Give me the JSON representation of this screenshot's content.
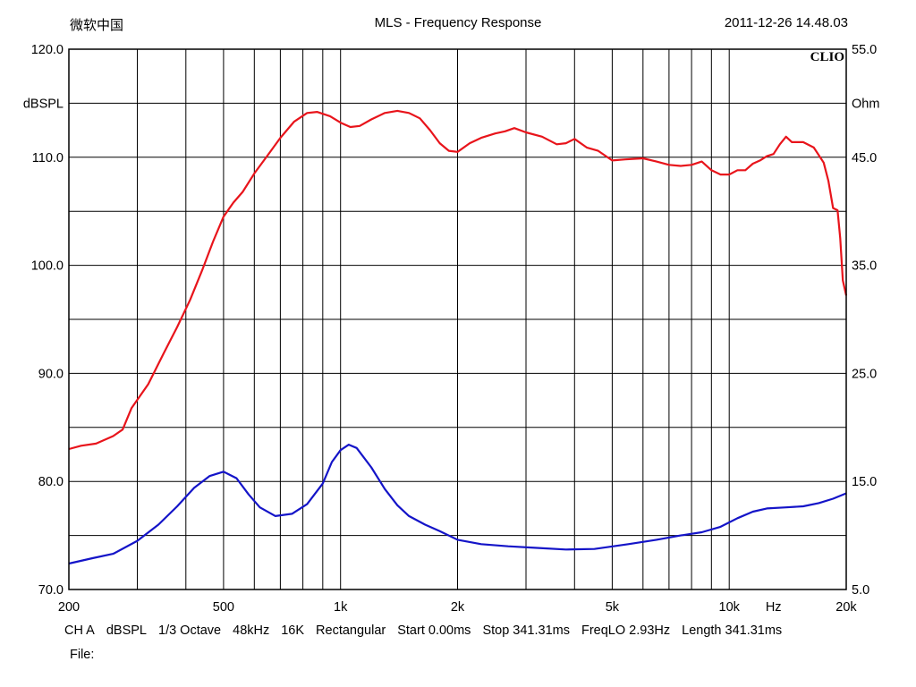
{
  "header": {
    "software": "微软中国",
    "title": "MLS - Frequency Response",
    "timestamp": "2011-12-26 14.48.03"
  },
  "brand": "CLIO",
  "footer": {
    "params": [
      "CH A",
      "dBSPL",
      "1/3 Octave",
      "48kHz",
      "16K",
      "Rectangular",
      "Start 0.00ms",
      "Stop 341.31ms",
      "FreqLO 2.93Hz",
      "Length 341.31ms"
    ],
    "file_label": "File:"
  },
  "chart_data": {
    "type": "line",
    "title": "MLS - Frequency Response",
    "xscale": "log",
    "xlim": [
      200,
      20000
    ],
    "x_ticks": [
      {
        "value": 200,
        "label": "200"
      },
      {
        "value": 500,
        "label": "500"
      },
      {
        "value": 1000,
        "label": "1k"
      },
      {
        "value": 2000,
        "label": "2k"
      },
      {
        "value": 5000,
        "label": "5k"
      },
      {
        "value": 10000,
        "label": "10k"
      },
      {
        "value": 20000,
        "label": "20k"
      }
    ],
    "x_unit_label": "Hz",
    "x_unit_at": 13000,
    "y_left": {
      "label": "dBSPL",
      "ylim": [
        70,
        120
      ],
      "ticks": [
        "70.0",
        "80.0",
        "90.0",
        "100.0",
        "110.0",
        "120.0"
      ],
      "label_at": 115
    },
    "y_right": {
      "label": "Ohm",
      "ylim": [
        5,
        55
      ],
      "ticks": [
        "5.0",
        "15.0",
        "25.0",
        "35.0",
        "45.0",
        "55.0"
      ],
      "label_at": 50
    },
    "grid": true,
    "series": [
      {
        "axis": "left",
        "color": "#e8141b",
        "points": [
          [
            200,
            83.0
          ],
          [
            215,
            83.3
          ],
          [
            235,
            83.5
          ],
          [
            260,
            84.2
          ],
          [
            275,
            84.8
          ],
          [
            290,
            86.8
          ],
          [
            320,
            89.0
          ],
          [
            350,
            91.8
          ],
          [
            380,
            94.3
          ],
          [
            410,
            96.8
          ],
          [
            440,
            99.5
          ],
          [
            470,
            102.2
          ],
          [
            500,
            104.5
          ],
          [
            530,
            105.8
          ],
          [
            560,
            106.8
          ],
          [
            600,
            108.5
          ],
          [
            650,
            110.2
          ],
          [
            700,
            111.8
          ],
          [
            760,
            113.3
          ],
          [
            820,
            114.1
          ],
          [
            870,
            114.2
          ],
          [
            940,
            113.8
          ],
          [
            1000,
            113.2
          ],
          [
            1060,
            112.8
          ],
          [
            1120,
            112.9
          ],
          [
            1200,
            113.5
          ],
          [
            1300,
            114.1
          ],
          [
            1400,
            114.3
          ],
          [
            1500,
            114.1
          ],
          [
            1600,
            113.6
          ],
          [
            1700,
            112.5
          ],
          [
            1800,
            111.3
          ],
          [
            1900,
            110.6
          ],
          [
            2000,
            110.5
          ],
          [
            2150,
            111.3
          ],
          [
            2300,
            111.8
          ],
          [
            2500,
            112.2
          ],
          [
            2650,
            112.4
          ],
          [
            2800,
            112.7
          ],
          [
            3000,
            112.3
          ],
          [
            3300,
            111.9
          ],
          [
            3600,
            111.2
          ],
          [
            3800,
            111.3
          ],
          [
            4000,
            111.7
          ],
          [
            4300,
            110.9
          ],
          [
            4600,
            110.6
          ],
          [
            5000,
            109.7
          ],
          [
            5400,
            109.8
          ],
          [
            6000,
            109.9
          ],
          [
            6500,
            109.6
          ],
          [
            7000,
            109.3
          ],
          [
            7500,
            109.2
          ],
          [
            8000,
            109.3
          ],
          [
            8500,
            109.6
          ],
          [
            9000,
            108.8
          ],
          [
            9500,
            108.4
          ],
          [
            10000,
            108.4
          ],
          [
            10500,
            108.8
          ],
          [
            11000,
            108.8
          ],
          [
            11500,
            109.4
          ],
          [
            12000,
            109.7
          ],
          [
            12500,
            110.1
          ],
          [
            13000,
            110.3
          ],
          [
            13500,
            111.2
          ],
          [
            14000,
            111.9
          ],
          [
            14500,
            111.4
          ],
          [
            15500,
            111.4
          ],
          [
            16500,
            110.9
          ],
          [
            17500,
            109.5
          ],
          [
            18000,
            107.8
          ],
          [
            18500,
            105.3
          ],
          [
            19000,
            105.1
          ],
          [
            19300,
            102.5
          ],
          [
            19600,
            98.6
          ],
          [
            20000,
            97.2
          ]
        ]
      },
      {
        "axis": "right",
        "color": "#1414c8",
        "points": [
          [
            200,
            7.4
          ],
          [
            230,
            7.9
          ],
          [
            260,
            8.3
          ],
          [
            300,
            9.5
          ],
          [
            340,
            11.0
          ],
          [
            380,
            12.7
          ],
          [
            420,
            14.4
          ],
          [
            460,
            15.5
          ],
          [
            500,
            15.9
          ],
          [
            540,
            15.3
          ],
          [
            580,
            13.8
          ],
          [
            620,
            12.6
          ],
          [
            680,
            11.8
          ],
          [
            750,
            12.0
          ],
          [
            820,
            12.9
          ],
          [
            900,
            14.8
          ],
          [
            950,
            16.8
          ],
          [
            1000,
            17.9
          ],
          [
            1050,
            18.4
          ],
          [
            1100,
            18.1
          ],
          [
            1200,
            16.3
          ],
          [
            1300,
            14.3
          ],
          [
            1400,
            12.8
          ],
          [
            1500,
            11.8
          ],
          [
            1650,
            11.0
          ],
          [
            1800,
            10.4
          ],
          [
            2000,
            9.6
          ],
          [
            2300,
            9.2
          ],
          [
            2700,
            9.0
          ],
          [
            3200,
            8.85
          ],
          [
            3800,
            8.7
          ],
          [
            4500,
            8.75
          ],
          [
            5500,
            9.2
          ],
          [
            6500,
            9.6
          ],
          [
            7500,
            10.0
          ],
          [
            8500,
            10.3
          ],
          [
            9500,
            10.8
          ],
          [
            10500,
            11.6
          ],
          [
            11500,
            12.2
          ],
          [
            12500,
            12.5
          ],
          [
            14000,
            12.6
          ],
          [
            15500,
            12.7
          ],
          [
            17000,
            13.0
          ],
          [
            18500,
            13.4
          ],
          [
            20000,
            13.9
          ]
        ]
      }
    ]
  }
}
